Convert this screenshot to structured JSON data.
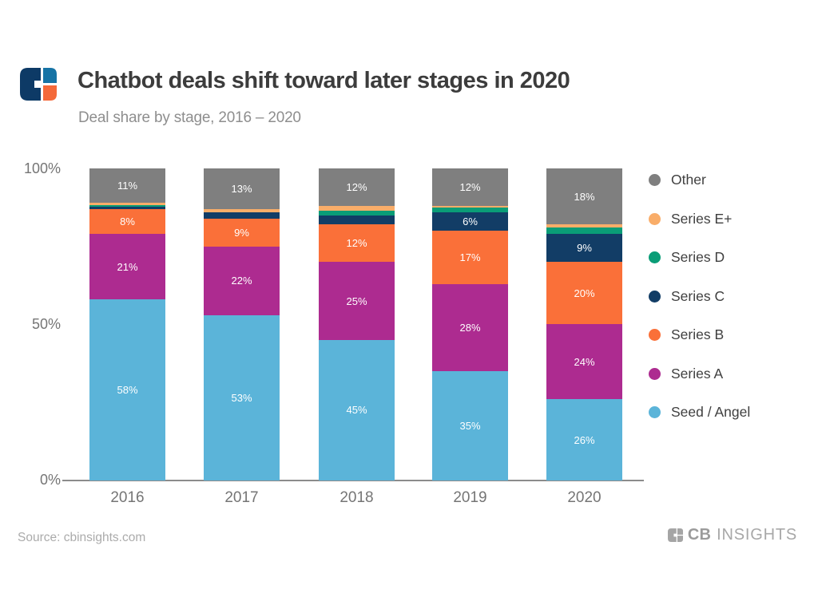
{
  "header": {
    "title": "Chatbot deals shift toward later stages in 2020",
    "subtitle": "Deal share by stage, 2016 – 2020"
  },
  "chart_data": {
    "type": "bar",
    "stacked": true,
    "unit": "%",
    "title": "Chatbot deals shift toward later stages in 2020",
    "subtitle": "Deal share by stage, 2016 – 2020",
    "categories": [
      "2016",
      "2017",
      "2018",
      "2019",
      "2020"
    ],
    "series": [
      {
        "name": "Seed / Angel",
        "color": "#5bb4d9",
        "values": [
          58,
          53,
          45,
          35,
          26
        ],
        "labels": [
          "58%",
          "53%",
          "45%",
          "35%",
          "26%"
        ]
      },
      {
        "name": "Series A",
        "color": "#ad2b90",
        "values": [
          21,
          22,
          25,
          28,
          24
        ],
        "labels": [
          "21%",
          "22%",
          "25%",
          "28%",
          "24%"
        ]
      },
      {
        "name": "Series B",
        "color": "#fa7039",
        "values": [
          8,
          9,
          12,
          17,
          20
        ],
        "labels": [
          "8%",
          "9%",
          "12%",
          "17%",
          "20%"
        ]
      },
      {
        "name": "Series C",
        "color": "#123d66",
        "values": [
          0.7,
          2,
          3,
          6,
          9
        ],
        "labels": [
          "",
          "",
          "",
          "6%",
          "9%"
        ]
      },
      {
        "name": "Series D",
        "color": "#0a9d77",
        "values": [
          0.6,
          0,
          1.5,
          1.5,
          2
        ],
        "labels": [
          "",
          "",
          "",
          "",
          ""
        ]
      },
      {
        "name": "Series E+",
        "color": "#f9ad69",
        "values": [
          0.7,
          1,
          1.5,
          0.5,
          1
        ],
        "labels": [
          "",
          "",
          "",
          "",
          ""
        ]
      },
      {
        "name": "Other",
        "color": "#7f7f7f",
        "values": [
          11,
          13,
          12,
          12,
          18
        ],
        "labels": [
          "11%",
          "13%",
          "12%",
          "12%",
          "18%"
        ]
      }
    ],
    "y_axis": {
      "ticks": [
        "100%",
        "50%",
        "0%"
      ],
      "tick_values": [
        100,
        50,
        0
      ],
      "range": [
        0,
        100
      ],
      "grid": false
    },
    "legend": {
      "position": "right",
      "order_top_to_bottom": [
        "Other",
        "Series E+",
        "Series D",
        "Series C",
        "Series B",
        "Series A",
        "Seed / Angel"
      ]
    }
  },
  "footer": {
    "source": "Source: cbinsights.com",
    "logo_text_bold": "CB",
    "logo_text_light": "INSIGHTS"
  },
  "colors": {
    "title": "#3c3c3c",
    "subtitle": "#8e8e8e",
    "axis_text": "#757575",
    "axis_line": "#8c8c8c",
    "bar_label": "#ffffff",
    "source_text": "#ababab",
    "footer_logo": "#a5a5a5",
    "logo_navy": "#0d3a66",
    "logo_blue": "#1673a5",
    "logo_orange": "#f4693a"
  }
}
